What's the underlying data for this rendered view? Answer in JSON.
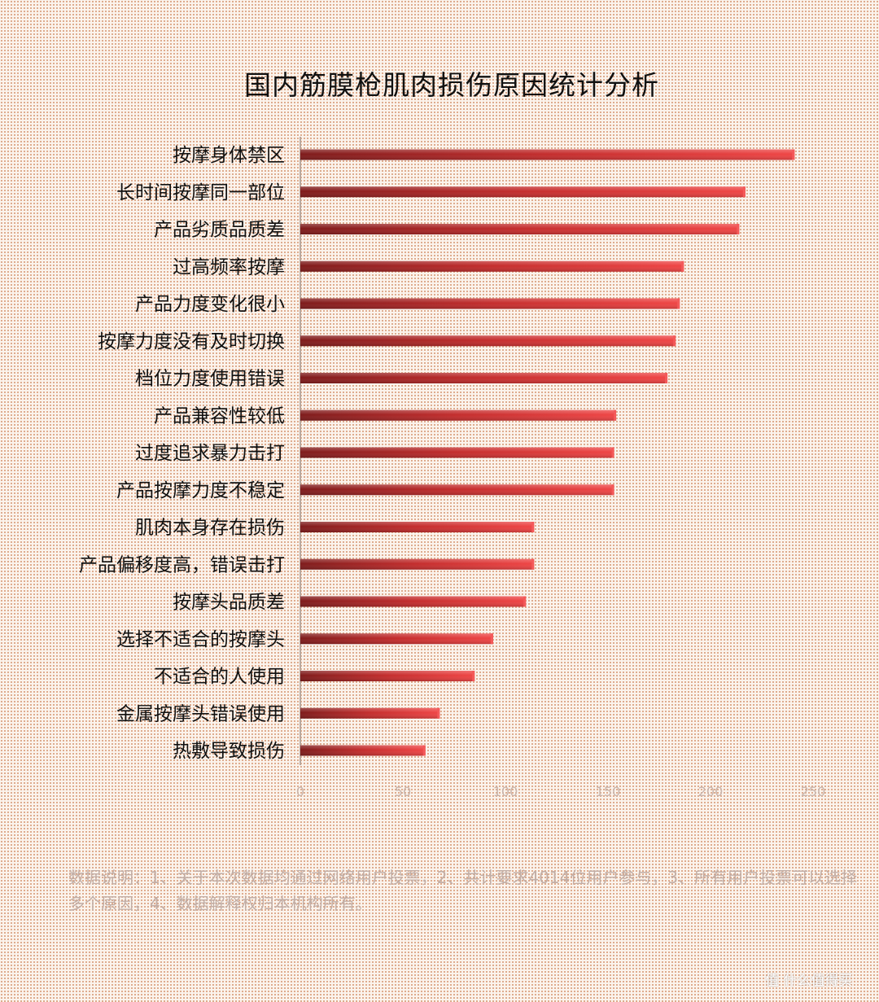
{
  "chart_data": {
    "type": "bar",
    "orientation": "horizontal",
    "title": "国内筋膜枪肌肉损伤原因统计分析",
    "categories": [
      "按摩身体禁区",
      "长时间按摩同一部位",
      "产品劣质品质差",
      "过高频率按摩",
      "产品力度变化很小",
      "按摩力度没有及时切换",
      "档位力度使用错误",
      "产品兼容性较低",
      "过度追求暴力击打",
      "产品按摩力度不稳定",
      "肌肉本身存在损伤",
      "产品偏移度高，错误击打",
      "按摩头品质差",
      "选择不适合的按摩头",
      "不适合的人使用",
      "金属按摩头错误使用",
      "热敷导致损伤"
    ],
    "values": [
      241,
      217,
      214,
      187,
      185,
      183,
      179,
      154,
      153,
      153,
      114,
      114,
      110,
      94,
      85,
      68,
      61
    ],
    "xticks": [
      "0",
      "50",
      "100",
      "150",
      "200",
      "250"
    ],
    "xlim": [
      0,
      250
    ],
    "grid": false,
    "legend": "none",
    "bar_color": "#e03a3a",
    "bar_color_dark": "#8a1c1c"
  },
  "note": "数据说明：1、关于本次数据均通过网络用户投票，2、共计要求4014位用户参与，3、所有用户投票可以选择多个原因，4、数据解释权归本机构所有。",
  "watermark": "值 什么值得买"
}
